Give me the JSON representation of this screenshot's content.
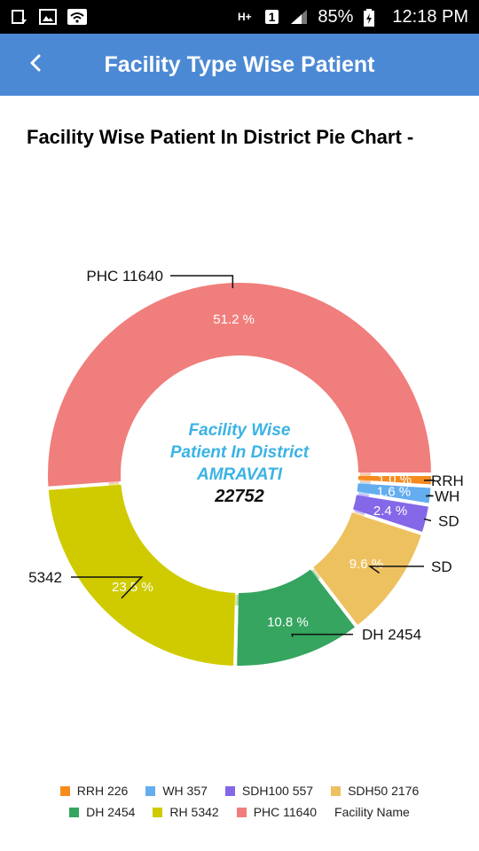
{
  "status_bar": {
    "battery": "85%",
    "time": "12:18 PM",
    "sim": "1"
  },
  "header": {
    "title": "Facility Type Wise Patient",
    "back_icon": "chevron-left-icon"
  },
  "section_title": "Facility Wise Patient In District Pie Chart -",
  "chart_data": {
    "type": "pie",
    "variant": "donut",
    "center_text": [
      "Facility Wise",
      "Patient In District",
      "AMRAVATI"
    ],
    "center_total": "22752",
    "legend_title": "Facility Name",
    "legend_placement": "bottom",
    "slices": [
      {
        "name": "RRH",
        "value": 226,
        "percent": "1.0 %",
        "color": "#f68b1f",
        "outer_label": "RRH",
        "legend": "RRH  226"
      },
      {
        "name": "WH",
        "value": 357,
        "percent": "1.6 %",
        "color": "#64adef",
        "outer_label": "WH",
        "legend": "WH 357"
      },
      {
        "name": "SDH100",
        "value": 557,
        "percent": "2.4 %",
        "color": "#8468e8",
        "outer_label": "SD",
        "legend": "SDH100 557"
      },
      {
        "name": "SDH50",
        "value": 2176,
        "percent": "9.6 %",
        "color": "#eec160",
        "outer_label": "SD",
        "legend": "SDH50 2176"
      },
      {
        "name": "DH",
        "value": 2454,
        "percent": "10.8 %",
        "color": "#35a55f",
        "outer_label": "DH 2454",
        "legend": "DH 2454"
      },
      {
        "name": "RH",
        "value": 5342,
        "percent": "23.5 %",
        "color": "#cfcb00",
        "outer_label": "5342",
        "legend": "RH 5342"
      },
      {
        "name": "PHC",
        "value": 11640,
        "percent": "51.2 %",
        "color": "#f07e7c",
        "outer_label": "PHC 11640",
        "legend": "PHC 11640"
      }
    ]
  }
}
